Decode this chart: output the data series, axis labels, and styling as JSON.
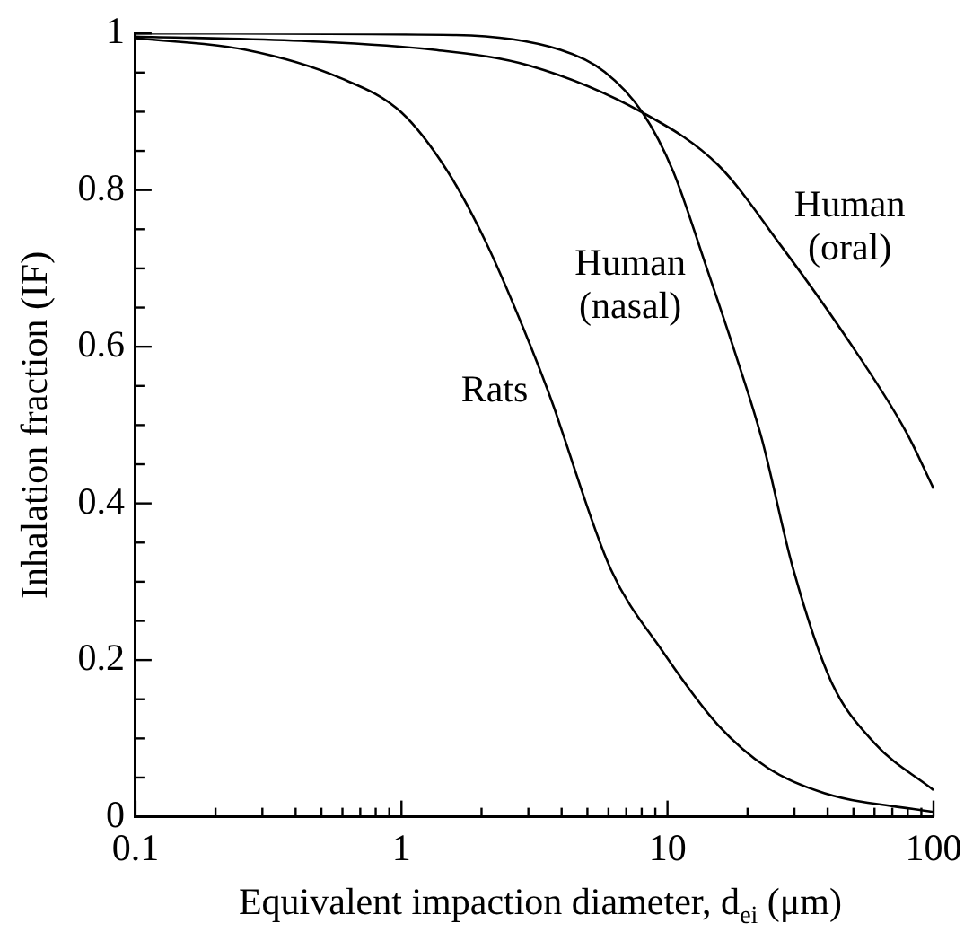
{
  "chart_data": {
    "type": "line",
    "xlabel": "Equivalent impaction diameter, d$_{ei}$ (μm)",
    "ylabel": "Inhalation fraction (IF)",
    "log": "x",
    "grid": false,
    "legend": false,
    "marker": "none",
    "line_style": "solid",
    "xlim": [
      0.1,
      100
    ],
    "ylim": [
      0,
      1
    ],
    "xticks": [
      0.1,
      {
        "value": 0.2,
        "label": null
      },
      {
        "value": 0.3,
        "label": null
      },
      {
        "value": 0.4,
        "label": null
      },
      {
        "value": 0.5,
        "label": null
      },
      {
        "value": 0.6,
        "label": null
      },
      {
        "value": 0.7,
        "label": null
      },
      {
        "value": 0.8,
        "label": null
      },
      {
        "value": 0.9,
        "label": null
      },
      1,
      {
        "value": 2,
        "label": null
      },
      {
        "value": 3,
        "label": null
      },
      {
        "value": 4,
        "label": null
      },
      {
        "value": 5,
        "label": null
      },
      {
        "value": 6,
        "label": null
      },
      {
        "value": 7,
        "label": null
      },
      {
        "value": 8,
        "label": null
      },
      {
        "value": 9,
        "label": null
      },
      10,
      {
        "value": 20,
        "label": null
      },
      {
        "value": 30,
        "label": null
      },
      {
        "value": 40,
        "label": null
      },
      {
        "value": 50,
        "label": null
      },
      {
        "value": 60,
        "label": null
      },
      {
        "value": 70,
        "label": null
      },
      {
        "value": 80,
        "label": null
      },
      {
        "value": 90,
        "label": null
      },
      100
    ],
    "yticks": [
      0,
      {
        "value": 0.05,
        "label": null
      },
      {
        "value": 0.1,
        "label": null
      },
      {
        "value": 0.15,
        "label": null
      },
      0.2,
      {
        "value": 0.25,
        "label": null
      },
      {
        "value": 0.3,
        "label": null
      },
      {
        "value": 0.35,
        "label": null
      },
      0.4,
      {
        "value": 0.45,
        "label": null
      },
      {
        "value": 0.5,
        "label": null
      },
      {
        "value": 0.55,
        "label": null
      },
      0.6,
      {
        "value": 0.65,
        "label": null
      },
      {
        "value": 0.7,
        "label": null
      },
      {
        "value": 0.75,
        "label": null
      },
      0.8,
      {
        "value": 0.85,
        "label": null
      },
      {
        "value": 0.9,
        "label": null
      },
      {
        "value": 0.95,
        "label": null
      },
      1
    ],
    "series": [
      {
        "name": "Rats",
        "color": "#000000",
        "x": [
          0.1,
          0.26,
          0.59,
          1,
          1.49,
          2.06,
          2.86,
          3.75,
          3.96,
          6.12,
          9.5,
          15.5,
          23.9,
          39,
          100
        ],
        "values": [
          0.994,
          0.979,
          0.943,
          0.899,
          0.824,
          0.736,
          0.625,
          0.522,
          0.498,
          0.316,
          0.213,
          0.117,
          0.062,
          0.03,
          0.006
        ]
      },
      {
        "name": "Human (nasal)",
        "color": "#000000",
        "x": [
          0.1,
          1.57,
          3.96,
          5.8,
          8.05,
          10.5,
          13.9,
          18.2,
          22.6,
          29.7,
          41.2,
          60,
          100
        ],
        "values": [
          1,
          0.998,
          0.979,
          0.951,
          0.899,
          0.824,
          0.705,
          0.586,
          0.483,
          0.316,
          0.173,
          0.094,
          0.034
        ]
      },
      {
        "name": "Human (oral)",
        "color": "#000000",
        "x": [
          0.1,
          0.45,
          1.33,
          3.02,
          8.05,
          15.5,
          26.7,
          45.9,
          79,
          100
        ],
        "values": [
          0.996,
          0.99,
          0.979,
          0.959,
          0.899,
          0.832,
          0.729,
          0.617,
          0.491,
          0.419
        ]
      }
    ]
  }
}
